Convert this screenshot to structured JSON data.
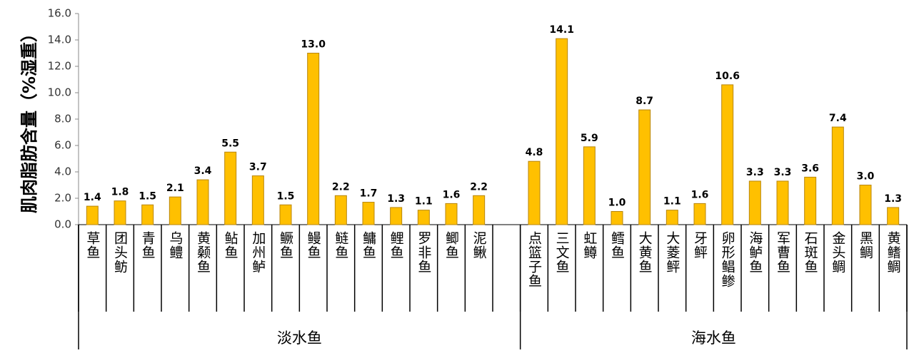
{
  "chart_data": {
    "type": "bar",
    "ylabel": "肌肉脂肪含量（%湿重）",
    "categories": [
      "草鱼",
      "团头鲂",
      "青鱼",
      "乌鳢",
      "黄颡鱼",
      "鲇鱼",
      "加州鲈",
      "鳜鱼",
      "鳗鱼",
      "鲢鱼",
      "鳙鱼",
      "鲤鱼",
      "罗非鱼",
      "鲫鱼",
      "泥鳅",
      null,
      "点篮子鱼",
      "三文鱼",
      "虹鳟",
      "鳕鱼",
      "大黄鱼",
      "大菱鲆",
      "牙鲆",
      "卵形鲳鲹",
      "海鲈鱼",
      "军曹鱼",
      "石斑鱼",
      "金头鲷",
      "黑鲷",
      "黄鳍鲷"
    ],
    "values": [
      1.4,
      1.8,
      1.5,
      2.1,
      3.4,
      5.5,
      3.7,
      1.5,
      13.0,
      2.2,
      1.7,
      1.3,
      1.1,
      1.6,
      2.2,
      null,
      4.8,
      14.1,
      5.9,
      1.0,
      8.7,
      1.1,
      1.6,
      10.6,
      3.3,
      3.3,
      3.6,
      7.4,
      3.0,
      1.3
    ],
    "value_labels": [
      "1.4",
      "1.8",
      "1.5",
      "2.1",
      "3.4",
      "5.5",
      "3.7",
      "1.5",
      "13.0",
      "2.2",
      "1.7",
      "1.3",
      "1.1",
      "1.6",
      "2.2",
      null,
      "4.8",
      "14.1",
      "5.9",
      "1.0",
      "8.7",
      "1.1",
      "1.6",
      "10.6",
      "3.3",
      "3.3",
      "3.6",
      "7.4",
      "3.0",
      "1.3"
    ],
    "groups": [
      {
        "name": "淡水鱼",
        "count": 16
      },
      {
        "name": "海水鱼",
        "count": 14
      }
    ],
    "color": "#ffc000",
    "ylim": [
      0,
      16
    ],
    "yticks": [
      {
        "value": 0,
        "label": "0.0"
      },
      {
        "value": 2,
        "label": "2.0"
      },
      {
        "value": 4,
        "label": "4.0"
      },
      {
        "value": 6,
        "label": "6.0"
      },
      {
        "value": 8,
        "label": "8.0"
      },
      {
        "value": 10,
        "label": "10.0"
      },
      {
        "value": 12,
        "label": "12.0"
      },
      {
        "value": 14,
        "label": "14.0"
      },
      {
        "value": 16,
        "label": "16.0"
      }
    ]
  }
}
